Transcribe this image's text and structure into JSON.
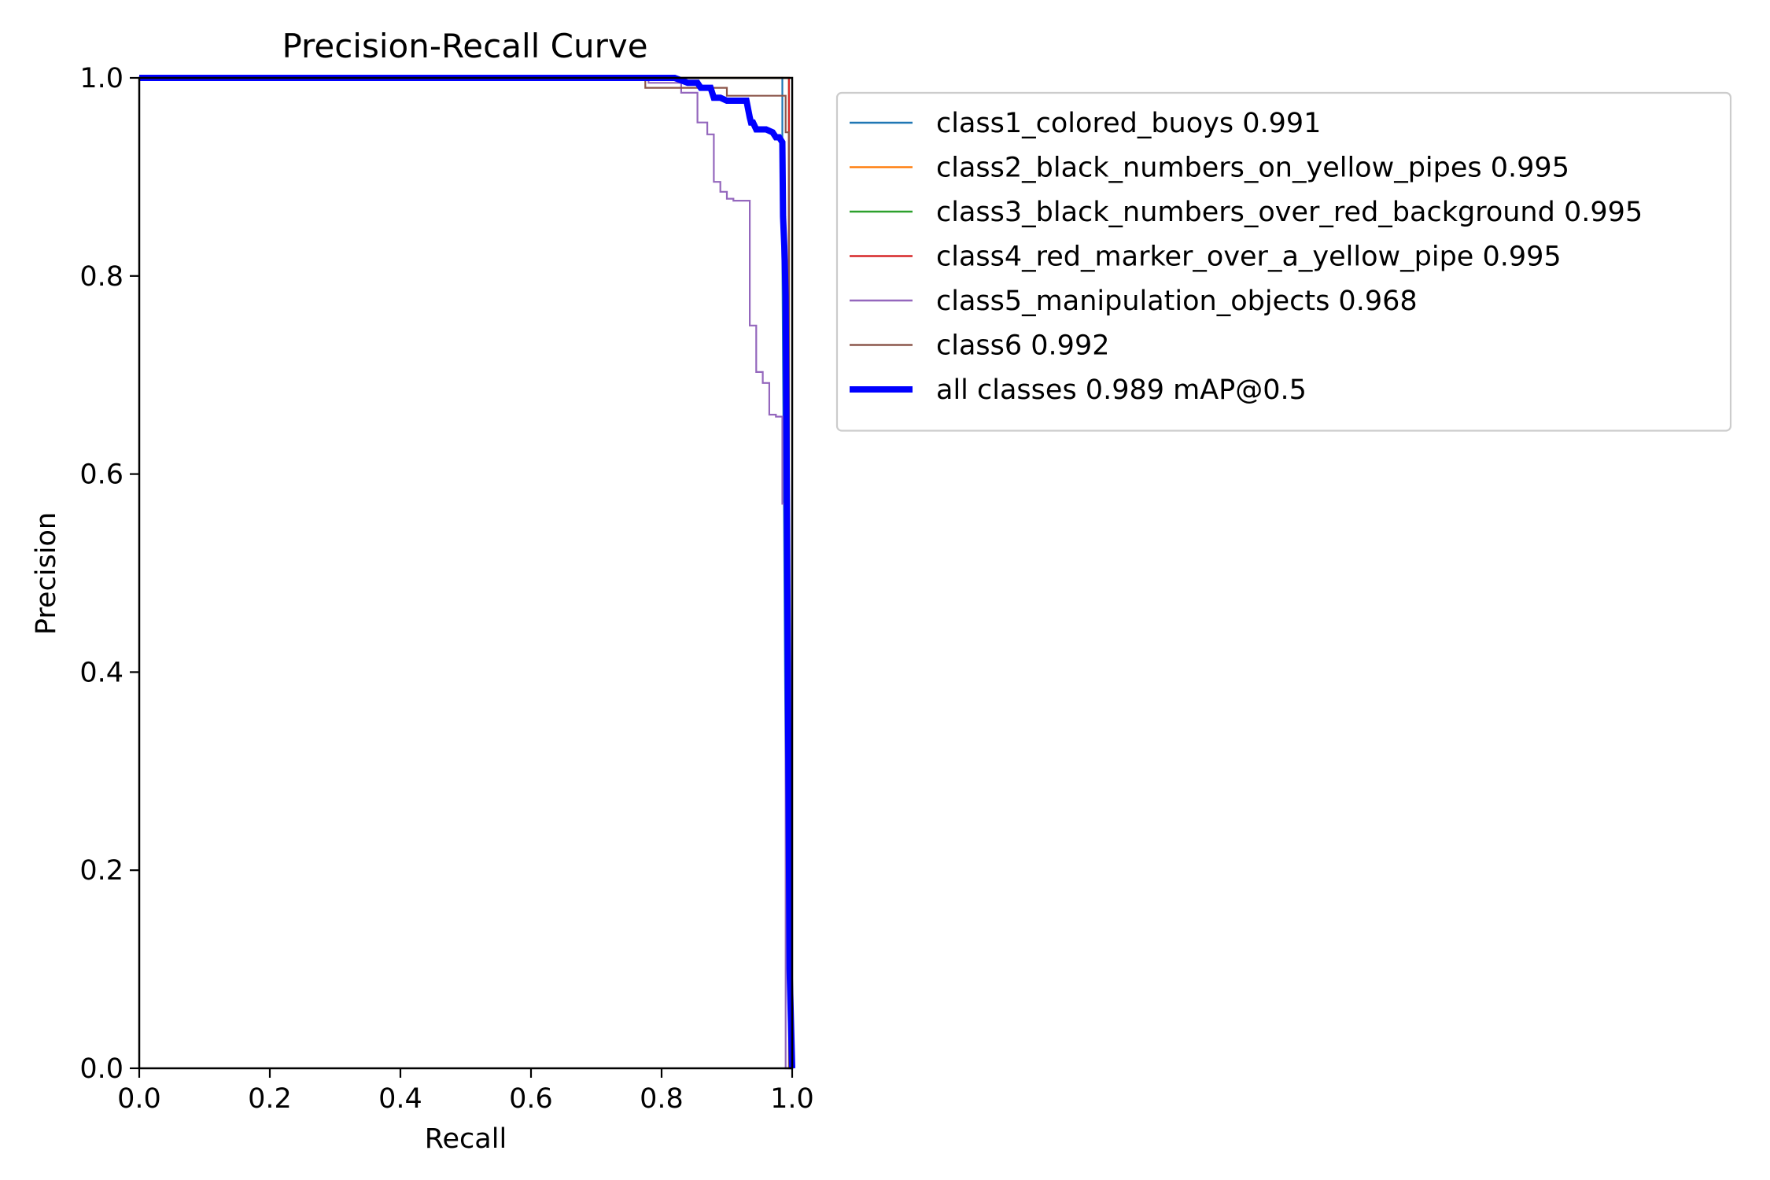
{
  "chart_data": {
    "type": "line",
    "title": "Precision-Recall Curve",
    "xlabel": "Recall",
    "ylabel": "Precision",
    "xlim": [
      0,
      1
    ],
    "ylim": [
      0,
      1
    ],
    "xticks": [
      "0.0",
      "0.2",
      "0.4",
      "0.6",
      "0.8",
      "1.0"
    ],
    "yticks": [
      "0.0",
      "0.2",
      "0.4",
      "0.6",
      "0.8",
      "1.0"
    ],
    "grid": false,
    "legend_position": "outside-upper-right",
    "series": [
      {
        "name": "class1_colored_buoys 0.991",
        "color": "#1f77b4",
        "width": "thin",
        "x": [
          0,
          0.98,
          0.985,
          0.985,
          0.99,
          0.995,
          1.0
        ],
        "y": [
          1.0,
          1.0,
          1.0,
          0.82,
          0.3,
          0.05,
          0.0
        ]
      },
      {
        "name": "class2_black_numbers_on_yellow_pipes 0.995",
        "color": "#ff7f0e",
        "width": "thin",
        "x": [
          0,
          0.995,
          0.995,
          1.0
        ],
        "y": [
          1.0,
          1.0,
          0.5,
          0.0
        ]
      },
      {
        "name": "class3_black_numbers_over_red_background 0.995",
        "color": "#2ca02c",
        "width": "thin",
        "x": [
          0,
          0.995,
          0.995,
          1.0
        ],
        "y": [
          1.0,
          1.0,
          0.4,
          0.0
        ]
      },
      {
        "name": "class4_red_marker_over_a_yellow_pipe 0.995",
        "color": "#d62728",
        "width": "thin",
        "x": [
          0,
          0.995,
          0.995,
          1.0
        ],
        "y": [
          1.0,
          1.0,
          0.3,
          0.0
        ]
      },
      {
        "name": "class5_manipulation_objects 0.968",
        "color": "#9467bd",
        "width": "thin",
        "x": [
          0,
          0.78,
          0.78,
          0.83,
          0.83,
          0.855,
          0.855,
          0.87,
          0.87,
          0.88,
          0.88,
          0.89,
          0.89,
          0.9,
          0.9,
          0.91,
          0.91,
          0.935,
          0.935,
          0.945,
          0.945,
          0.955,
          0.955,
          0.965,
          0.965,
          0.975,
          0.975,
          0.985,
          0.985,
          0.99,
          0.99,
          1.0
        ],
        "y": [
          1.0,
          1.0,
          0.995,
          0.995,
          0.985,
          0.985,
          0.955,
          0.955,
          0.943,
          0.943,
          0.895,
          0.895,
          0.885,
          0.885,
          0.878,
          0.878,
          0.876,
          0.876,
          0.75,
          0.75,
          0.703,
          0.703,
          0.692,
          0.692,
          0.66,
          0.66,
          0.658,
          0.658,
          0.57,
          0.57,
          0.0,
          0.0
        ]
      },
      {
        "name": "class6 0.992",
        "color": "#8c564b",
        "width": "thin",
        "x": [
          0,
          0.775,
          0.775,
          0.9,
          0.9,
          0.99,
          0.99,
          0.995,
          0.995,
          1.0
        ],
        "y": [
          1.0,
          1.0,
          0.99,
          0.99,
          0.982,
          0.982,
          0.945,
          0.945,
          0.0,
          0.0
        ]
      },
      {
        "name": "all classes 0.989 mAP@0.5",
        "color": "#0000ff",
        "width": "thick",
        "x": [
          0,
          0.82,
          0.84,
          0.855,
          0.86,
          0.875,
          0.88,
          0.89,
          0.9,
          0.905,
          0.93,
          0.935,
          0.937,
          0.94,
          0.945,
          0.96,
          0.97,
          0.975,
          0.98,
          0.985,
          0.986,
          0.988,
          0.99,
          0.993,
          0.996,
          1.0
        ],
        "y": [
          1.0,
          1.0,
          0.995,
          0.995,
          0.99,
          0.99,
          0.98,
          0.98,
          0.977,
          0.977,
          0.977,
          0.96,
          0.955,
          0.955,
          0.948,
          0.948,
          0.945,
          0.94,
          0.94,
          0.935,
          0.86,
          0.83,
          0.78,
          0.45,
          0.1,
          0.0
        ]
      }
    ]
  }
}
